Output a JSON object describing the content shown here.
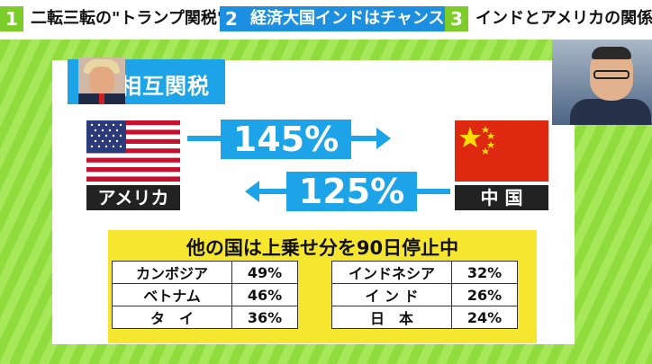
{
  "tabs": [
    {
      "num": "1",
      "label": "二転三転の\"トランプ関税\""
    },
    {
      "num": "2",
      "label": "経済大国インドはチャンス？"
    },
    {
      "num": "3",
      "label": "インドとアメリカの関係"
    }
  ],
  "badge": {
    "title": "相互関税"
  },
  "left_country": "アメリカ",
  "right_country": "中 国",
  "rate_us_to_cn": "145%",
  "rate_cn_to_us": "125%",
  "headline": "他の国は上乗せ分を90日停止中",
  "table_left": [
    {
      "country": "カンボジア",
      "rate": "49%"
    },
    {
      "country": "ベトナム",
      "rate": "46%"
    },
    {
      "country": "タ　イ",
      "rate": "36%"
    }
  ],
  "table_right": [
    {
      "country": "インドネシア",
      "rate": "32%"
    },
    {
      "country": "イ ン ド",
      "rate": "26%"
    },
    {
      "country": "日　本",
      "rate": "24%"
    }
  ],
  "colors": {
    "accent_blue": "#1da3e8",
    "green": "#8fdc3c",
    "yellow": "#f7e630",
    "china_red": "#de2910"
  }
}
